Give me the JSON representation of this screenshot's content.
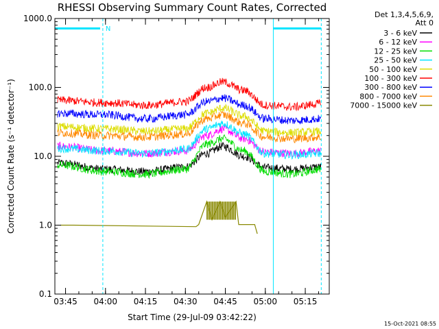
{
  "chart_data": {
    "type": "line",
    "title": "RHESSI Observing Summary Count Rates, Corrected",
    "xlabel": "Start Time (29-Jul-09 03:42:22)",
    "ylabel": "Corrected Count Rate (s⁻¹ detector⁻¹)",
    "yscale": "log",
    "ylim": [
      0.1,
      1000
    ],
    "xlim": [
      "03:41:00",
      "05:24:00"
    ],
    "x_ticks": [
      "03:45",
      "04:00",
      "04:15",
      "04:30",
      "04:45",
      "05:00",
      "05:15"
    ],
    "y_ticks": [
      "0.1",
      "1.0",
      "10.0",
      "100.0",
      "1000.0"
    ],
    "grid": false,
    "legend_position": "right",
    "legend_header": [
      "Det 1,3,4,5,6,9,",
      "Att 0"
    ],
    "timestamp": "15-Oct-2021 08:55",
    "annotations": [
      {
        "text": "N",
        "x": "03:59"
      }
    ],
    "flags": {
      "color": "#00e5ff",
      "bars": [
        [
          "03:41",
          "03:58"
        ],
        [
          "05:03",
          "05:21"
        ]
      ],
      "dashed_lines": [
        "03:59",
        "05:21"
      ],
      "solid_lines": [
        "03:41",
        "05:03"
      ]
    },
    "series": [
      {
        "name": "3 - 6 keV",
        "color": "#000000",
        "points": [
          [
            "03:42",
            8
          ],
          [
            "04:00",
            6.5
          ],
          [
            "04:15",
            6
          ],
          [
            "04:30",
            7
          ],
          [
            "04:38",
            11
          ],
          [
            "04:44",
            14
          ],
          [
            "04:52",
            10
          ],
          [
            "05:00",
            6.8
          ],
          [
            "05:10",
            6.5
          ],
          [
            "05:21",
            7
          ]
        ]
      },
      {
        "name": "6 - 12 keV",
        "color": "#ff00ff",
        "points": [
          [
            "03:42",
            14
          ],
          [
            "04:00",
            12
          ],
          [
            "04:15",
            11
          ],
          [
            "04:30",
            12
          ],
          [
            "04:38",
            20
          ],
          [
            "04:44",
            25
          ],
          [
            "04:52",
            18
          ],
          [
            "05:00",
            11.5
          ],
          [
            "05:10",
            11
          ],
          [
            "05:21",
            12
          ]
        ]
      },
      {
        "name": "12 - 25 keV",
        "color": "#00dd00",
        "points": [
          [
            "03:42",
            7.5
          ],
          [
            "04:00",
            6
          ],
          [
            "04:15",
            5.5
          ],
          [
            "04:30",
            6.5
          ],
          [
            "04:38",
            15
          ],
          [
            "04:44",
            18
          ],
          [
            "04:52",
            12
          ],
          [
            "05:00",
            6
          ],
          [
            "05:10",
            5.5
          ],
          [
            "05:21",
            6.5
          ]
        ]
      },
      {
        "name": "25 - 50 keV",
        "color": "#00e5ff",
        "points": [
          [
            "03:42",
            13
          ],
          [
            "04:00",
            12
          ],
          [
            "04:15",
            11
          ],
          [
            "04:30",
            12.5
          ],
          [
            "04:38",
            25
          ],
          [
            "04:44",
            30
          ],
          [
            "04:52",
            21
          ],
          [
            "05:00",
            11
          ],
          [
            "05:10",
            10.5
          ],
          [
            "05:21",
            11
          ]
        ]
      },
      {
        "name": "50 - 100 keV",
        "color": "#dddd00",
        "points": [
          [
            "03:42",
            27
          ],
          [
            "04:00",
            25
          ],
          [
            "04:15",
            23
          ],
          [
            "04:30",
            25
          ],
          [
            "04:38",
            42
          ],
          [
            "04:44",
            50
          ],
          [
            "04:52",
            38
          ],
          [
            "05:00",
            23
          ],
          [
            "05:10",
            22
          ],
          [
            "05:21",
            23
          ]
        ]
      },
      {
        "name": "100 - 300 keV",
        "color": "#ff0000",
        "points": [
          [
            "03:42",
            65
          ],
          [
            "04:00",
            60
          ],
          [
            "04:15",
            55
          ],
          [
            "04:30",
            62
          ],
          [
            "04:38",
            100
          ],
          [
            "04:44",
            120
          ],
          [
            "04:52",
            90
          ],
          [
            "05:00",
            55
          ],
          [
            "05:10",
            52
          ],
          [
            "05:21",
            58
          ]
        ]
      },
      {
        "name": "300 - 800 keV",
        "color": "#0000ff",
        "points": [
          [
            "03:42",
            42
          ],
          [
            "04:00",
            40
          ],
          [
            "04:15",
            35
          ],
          [
            "04:30",
            40
          ],
          [
            "04:38",
            62
          ],
          [
            "04:44",
            70
          ],
          [
            "04:52",
            55
          ],
          [
            "05:00",
            35
          ],
          [
            "05:10",
            33
          ],
          [
            "05:21",
            35
          ]
        ]
      },
      {
        "name": "800 - 7000 keV",
        "color": "#ff8800",
        "points": [
          [
            "03:42",
            22
          ],
          [
            "04:00",
            20
          ],
          [
            "04:15",
            19
          ],
          [
            "04:30",
            21
          ],
          [
            "04:38",
            35
          ],
          [
            "04:44",
            40
          ],
          [
            "04:52",
            30
          ],
          [
            "05:00",
            19
          ],
          [
            "05:10",
            18
          ],
          [
            "05:21",
            19
          ]
        ]
      },
      {
        "name": "7000 - 15000 keV",
        "color": "#888800",
        "points": [
          [
            "03:43",
            1.0
          ],
          [
            "03:48",
            1.0
          ],
          [
            "04:34",
            0.95
          ],
          [
            "04:35",
            1.02
          ],
          [
            "04:38",
            2.2
          ],
          [
            "04:40",
            1.2
          ],
          [
            "04:43",
            2.2
          ],
          [
            "04:45",
            1.3
          ],
          [
            "04:49",
            2.2
          ],
          [
            "04:50",
            1.02
          ],
          [
            "04:56",
            1.02
          ],
          [
            "04:57",
            0.75
          ]
        ]
      }
    ]
  }
}
